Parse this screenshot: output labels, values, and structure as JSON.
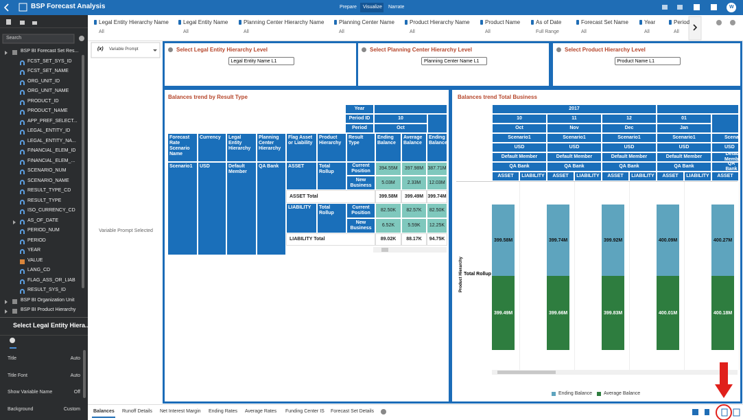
{
  "header": {
    "title": "BSP Forecast Analysis",
    "tabs": [
      "Prepare",
      "Visualize",
      "Narrate"
    ],
    "avatar": "W"
  },
  "sidebar": {
    "search": "Search",
    "tree": [
      "BSP BI Forecast Set Res...",
      "FCST_SET_SYS_ID",
      "FCST_SET_NAME",
      "ORG_UNIT_ID",
      "ORG_UNIT_NAME",
      "PRODUCT_ID",
      "PRODUCT_NAME",
      "APP_PREF_SELECT...",
      "LEGAL_ENTITY_ID",
      "LEGAL_ENTITY_NA...",
      "FINANCIAL_ELEM_ID",
      "FINANCIAL_ELEM_...",
      "SCENARIO_NUM",
      "SCENARIO_NAME",
      "RESULT_TYPE_CD",
      "RESULT_TYPE",
      "ISO_CURRENCY_CD",
      "AS_OF_DATE",
      "PERIOD_NUM",
      "PERIOD",
      "YEAR",
      "VALUE",
      "LANG_CD",
      "FLAG_ASS_OR_LIAB",
      "RESULT_SYS_ID",
      "BSP BI Organization Unit",
      "BSP BI Product Hierarchy"
    ],
    "properties": {
      "title": "Select Legal Entity Hiera...",
      "rows": [
        [
          "Title",
          "Auto"
        ],
        [
          "Title Font",
          "Auto"
        ],
        [
          "Show Variable Name",
          "Off"
        ],
        [
          "Background",
          "Custom"
        ]
      ]
    }
  },
  "filters": [
    [
      "Legal Entity Hierarchy Name",
      "All"
    ],
    [
      "Legal Entity Name",
      "All"
    ],
    [
      "Planning Center Hierarchy Name",
      "All"
    ],
    [
      "Planning Center Name",
      "All"
    ],
    [
      "Product Hierarchy Name",
      "All"
    ],
    [
      "Product Name",
      "All"
    ],
    [
      "As of Date",
      "Full Range"
    ],
    [
      "Forecast Set Name",
      "All"
    ],
    [
      "Year",
      "All"
    ],
    [
      "Period",
      "All"
    ]
  ],
  "variable_prompt": {
    "icon": "(x)",
    "label": "Variable Prompt",
    "selected": "Variable Prompt Selected"
  },
  "prompts": [
    [
      "Select Legal Entity Hierarchy Level",
      "Legal Entity Name L1"
    ],
    [
      "Select Planning Center Hierarchy Level",
      "Planning Center Name L1"
    ],
    [
      "Select Product Hierarchy Level",
      "Product Name L1"
    ]
  ],
  "pivot": {
    "title": "Balances trend by Result Type",
    "cells": [
      "Year",
      "Period ID",
      "10",
      "Period",
      "Oct",
      "Forecast Rate Scenario Name",
      "Currency",
      "Legal Entity Hierarchy",
      "Planning Center Hierarchy",
      "Flag Asset or Liability",
      "Product Hierarchy",
      "Result Type",
      "Ending Balance",
      "Average Balance",
      "Ending Balance",
      "Scenario1",
      "USD",
      "Default Member",
      "QA Bank",
      "ASSET",
      "Total Rollup",
      "Current Position",
      "394.55M",
      "397.98M",
      "387.71M",
      "New Business",
      "5.03M",
      "2.33M",
      "12.03M",
      "ASSET Total",
      "399.58M",
      "399.49M",
      "399.74M",
      "LIABILITY",
      "Total Rollup",
      "Current Position",
      "82.50K",
      "82.57K",
      "82.50K",
      "New Business",
      "6.52K",
      "5.59K",
      "12.25K",
      "LIABILITY Total",
      "89.02K",
      "88.17K",
      "94.75K"
    ]
  },
  "trend": {
    "title": "Balances trend Total Business",
    "year": "2017",
    "periods": [
      [
        "10",
        "Oct"
      ],
      [
        "11",
        "Nov"
      ],
      [
        "12",
        "Dec"
      ],
      [
        "01",
        "Jan"
      ]
    ],
    "scenario": "Scenario1",
    "currency": "USD",
    "legal": "Default Member",
    "planning": "QA Bank",
    "flags": [
      "ASSET",
      "LIABILITY"
    ],
    "axis_label": "Product Hierarchy",
    "row_label": "Total Rollup",
    "top_labels": [
      "399.58M",
      "399.74M",
      "399.92M",
      "400.09M",
      "400.27M"
    ],
    "bottom_labels": [
      "399.49M",
      "399.66M",
      "399.83M",
      "400.01M",
      "400.18M"
    ],
    "legend": [
      "Ending Balance",
      "Average Balance"
    ]
  },
  "bottom_tabs": [
    "Balances",
    "Runoff Details",
    "Net Interest Margin",
    "Ending Rates",
    "Average Rates",
    "Funding Center IS",
    "Forecast Set Details"
  ]
}
